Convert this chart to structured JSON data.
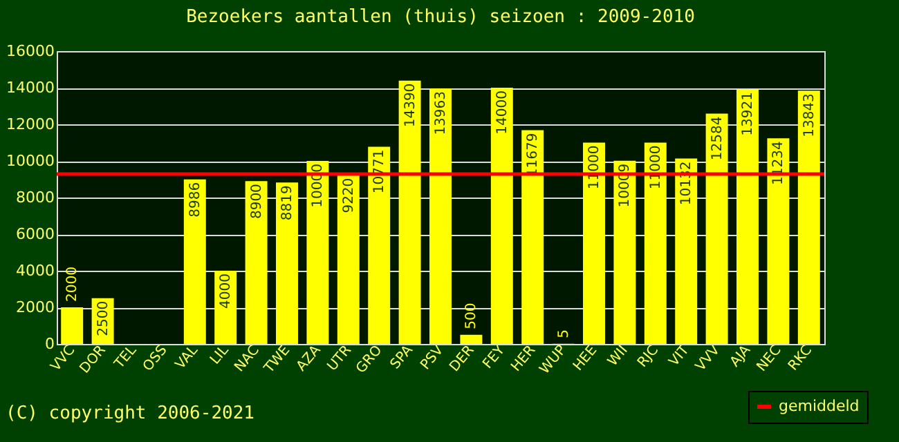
{
  "chart_data": {
    "type": "bar",
    "title": "Bezoekers aantallen (thuis) seizoen : 2009-2010",
    "categories": [
      "VVC",
      "DOR",
      "TEL",
      "OSS",
      "VAL",
      "LIL",
      "NAC",
      "TWE",
      "AZA",
      "UTR",
      "GRO",
      "SPA",
      "PSV",
      "DER",
      "FEY",
      "HER",
      "WUP",
      "HEE",
      "WII",
      "RJC",
      "VIT",
      "VVV",
      "AJA",
      "NEC",
      "RKC"
    ],
    "values": [
      2000,
      2500,
      null,
      null,
      8986,
      4000,
      8900,
      8819,
      10000,
      9220,
      10771,
      14390,
      13963,
      500,
      14000,
      11679,
      5,
      11000,
      10009,
      11000,
      10132,
      12584,
      13921,
      11234,
      13843
    ],
    "color": "#ffff00",
    "data_labels": true,
    "ylim": [
      0,
      16000
    ],
    "yticks": [
      0,
      2000,
      4000,
      6000,
      8000,
      10000,
      12000,
      14000,
      16000
    ],
    "grid": "y",
    "ref_lines": [
      {
        "axis": "y",
        "value": 9281,
        "label": "gemiddeld",
        "color": "#ff0000"
      }
    ],
    "legend": "bottom right",
    "annotations": [
      "(C) copyright 2006-2021"
    ]
  }
}
